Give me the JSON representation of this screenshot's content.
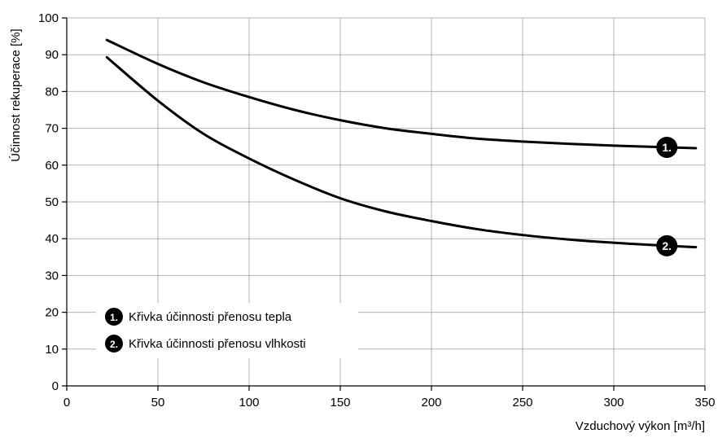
{
  "chart_data": {
    "type": "line",
    "title": "",
    "xlabel": "Vzduchový výkon [m³/h]",
    "ylabel": "Účinnost rekuperace [%]",
    "xlim": [
      0,
      350
    ],
    "ylim": [
      0,
      100
    ],
    "x_ticks": [
      0,
      50,
      100,
      150,
      200,
      250,
      300,
      350
    ],
    "y_ticks": [
      0,
      10,
      20,
      30,
      40,
      50,
      60,
      70,
      80,
      90,
      100
    ],
    "grid": true,
    "legend_position": "bottom-left",
    "series": [
      {
        "name": "Křivka účinnosti přenosu tepla",
        "marker": "1.",
        "x": [
          22,
          50,
          75,
          100,
          125,
          150,
          175,
          200,
          225,
          250,
          275,
          300,
          325,
          345
        ],
        "y": [
          94,
          87.5,
          82.5,
          78.5,
          75,
          72.2,
          70,
          68.5,
          67.2,
          66.4,
          65.8,
          65.3,
          64.9,
          64.6
        ]
      },
      {
        "name": "Křivka účinnosti přenosu vlhkosti",
        "marker": "2.",
        "x": [
          22,
          50,
          75,
          100,
          125,
          150,
          175,
          200,
          225,
          250,
          275,
          300,
          325,
          345
        ],
        "y": [
          89.3,
          77.5,
          68.5,
          61.8,
          56,
          51,
          47.4,
          44.8,
          42.6,
          41,
          39.8,
          38.9,
          38.2,
          37.7
        ]
      }
    ]
  }
}
